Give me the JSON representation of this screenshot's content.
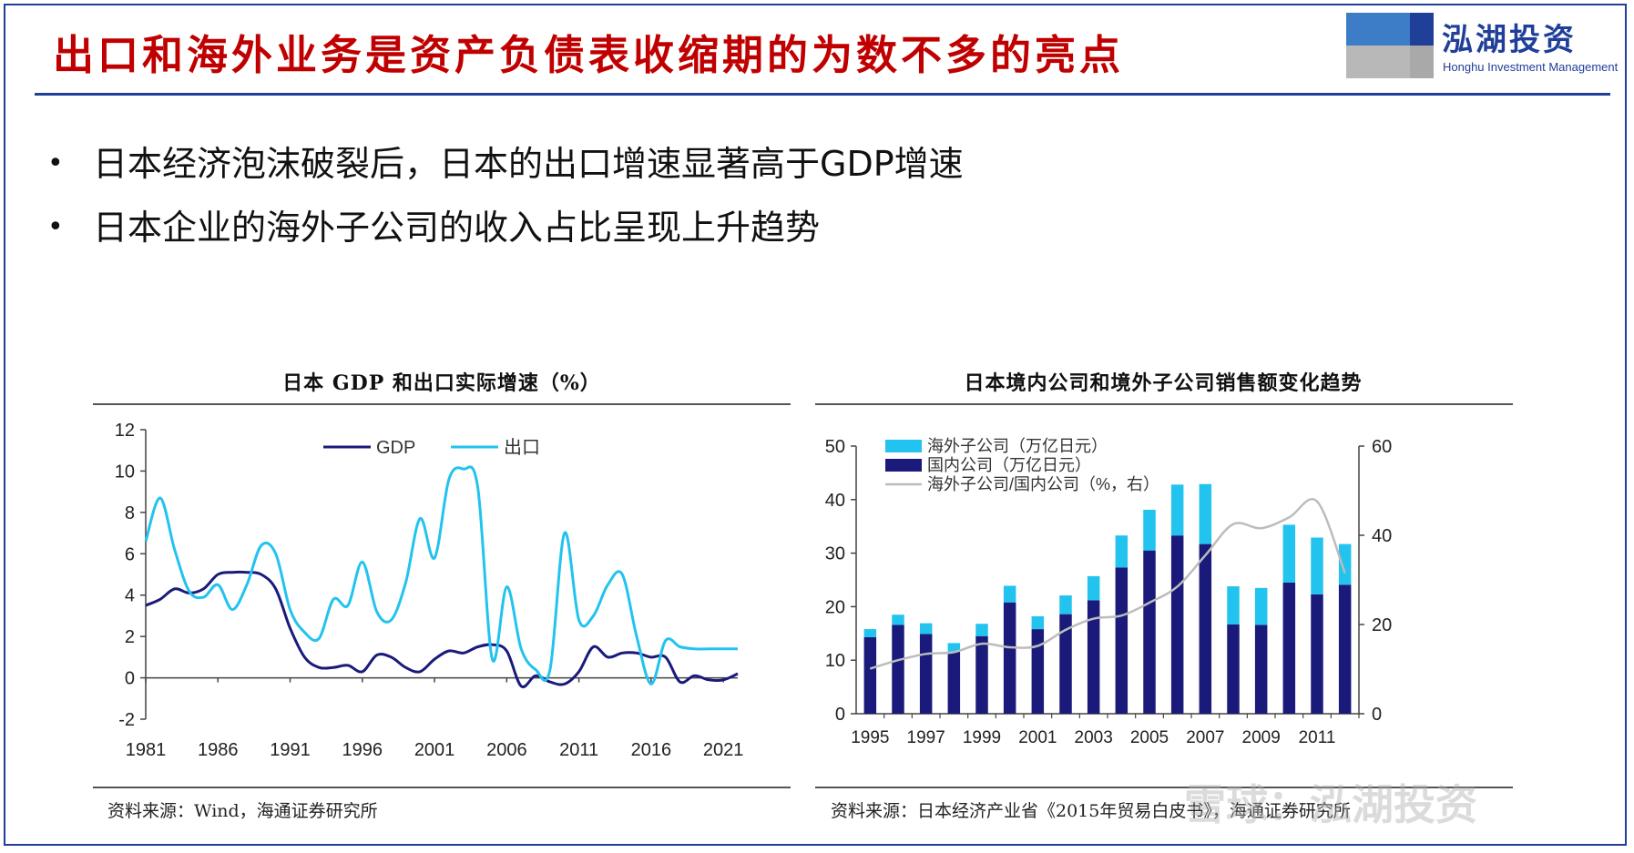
{
  "slide": {
    "title": "出口和海外业务是资产负债表收缩期的为数不多的亮点",
    "logo": {
      "name": "泓湖投资",
      "subtitle": "Honghu Investment Management"
    },
    "bullets": [
      "日本经济泡沫破裂后，日本的出口增速显著高于GDP增速",
      "日本企业的海外子公司的收入占比呈现上升趋势"
    ],
    "bullet_glyph": "•",
    "watermark": "雪球：泓湖投资"
  },
  "colors": {
    "title": "#c00000",
    "frame": "#1f3f99",
    "navy": "#1a1a7a",
    "cyan": "#22c3ee",
    "gray": "#bcbcbc"
  },
  "chart_data": [
    {
      "type": "line",
      "title": "日本 GDP 和出口实际增速（%）",
      "source": "资料来源：Wind，海通证券研究所",
      "ylim": [
        -2,
        12
      ],
      "yticks": [
        12,
        10,
        8,
        6,
        4,
        2,
        0,
        -2
      ],
      "xlim": [
        1981,
        2022
      ],
      "xticks": [
        1981,
        1986,
        1991,
        1996,
        2001,
        2006,
        2011,
        2016,
        2021
      ],
      "legend_position": "top",
      "grid": false,
      "series": [
        {
          "name": "GDP",
          "color": "#1a1a7a",
          "x": [
            1981,
            1982,
            1983,
            1984,
            1985,
            1986,
            1987,
            1988,
            1989,
            1990,
            1991,
            1992,
            1993,
            1994,
            1995,
            1996,
            1997,
            1998,
            1999,
            2000,
            2001,
            2002,
            2003,
            2004,
            2005,
            2006,
            2007,
            2008,
            2009,
            2010,
            2011,
            2012,
            2013,
            2014,
            2015,
            2016,
            2017,
            2018,
            2019,
            2020,
            2021,
            2022
          ],
          "y": [
            3.5,
            3.8,
            4.3,
            4.1,
            4.3,
            5.0,
            5.1,
            5.1,
            5.0,
            4.3,
            2.4,
            1.0,
            0.5,
            0.5,
            0.6,
            0.3,
            1.1,
            1.0,
            0.5,
            0.3,
            0.9,
            1.3,
            1.2,
            1.5,
            1.6,
            1.3,
            -0.4,
            0.1,
            -0.2,
            -0.3,
            0.3,
            1.5,
            1.0,
            1.2,
            1.2,
            1.0,
            1.0,
            -0.2,
            0.1,
            -0.1,
            -0.1,
            0.2
          ]
        },
        {
          "name": "出口",
          "color": "#22c3ee",
          "x": [
            1981,
            1982,
            1983,
            1984,
            1985,
            1986,
            1987,
            1988,
            1989,
            1990,
            1991,
            1992,
            1993,
            1994,
            1995,
            1996,
            1997,
            1998,
            1999,
            2000,
            2001,
            2002,
            2003,
            2004,
            2005,
            2006,
            2007,
            2008,
            2009,
            2010,
            2011,
            2012,
            2013,
            2014,
            2015,
            2016,
            2017,
            2018,
            2019,
            2020,
            2021,
            2022
          ],
          "y": [
            6.6,
            8.7,
            6.2,
            4.2,
            3.9,
            4.5,
            3.3,
            4.5,
            6.4,
            6.0,
            3.3,
            2.2,
            1.9,
            3.8,
            3.5,
            5.6,
            3.2,
            2.8,
            4.6,
            7.7,
            5.8,
            9.6,
            10.1,
            9.2,
            0.9,
            4.4,
            1.4,
            0.4,
            0.4,
            7.0,
            2.8,
            3.0,
            4.5,
            5.0,
            2.0,
            -0.3,
            1.8,
            1.5,
            1.4,
            1.4,
            1.4,
            1.4
          ]
        }
      ]
    },
    {
      "type": "bar",
      "title": "日本境内公司和境外子公司销售额变化趋势",
      "source": "资料来源：日本经济产业省《2015年贸易白皮书》，海通证券研究所",
      "stacked": true,
      "categories": [
        "1995",
        "1996",
        "1997",
        "1998",
        "1999",
        "2000",
        "2001",
        "2002",
        "2003",
        "2004",
        "2005",
        "2006",
        "2007",
        "2008",
        "2009",
        "2010",
        "2011",
        "2012"
      ],
      "xtick_labels": [
        "1995",
        "1997",
        "1999",
        "2001",
        "2003",
        "2005",
        "2007",
        "2009",
        "2011"
      ],
      "ylim": [
        0,
        50
      ],
      "yticks": [
        50,
        40,
        30,
        20,
        10,
        0
      ],
      "y2lim": [
        0,
        60
      ],
      "y2ticks": [
        60,
        40,
        20,
        0
      ],
      "legend_position": "top-left",
      "grid": false,
      "series": [
        {
          "name": "国内公司（万亿日元）",
          "color": "#1a1a7a",
          "axis": "left",
          "values": [
            14.3,
            16.6,
            14.9,
            11.6,
            14.5,
            20.8,
            15.8,
            18.6,
            21.2,
            27.3,
            30.5,
            33.3,
            31.7,
            16.7,
            16.6,
            24.5,
            22.3,
            24.1
          ]
        },
        {
          "name": "海外子公司（万亿日元）",
          "color": "#22c3ee",
          "axis": "left",
          "values": [
            1.5,
            1.9,
            2.0,
            1.6,
            2.3,
            3.1,
            2.4,
            3.5,
            4.5,
            6.0,
            7.6,
            9.5,
            11.2,
            7.1,
            6.9,
            10.8,
            10.6,
            7.6
          ]
        },
        {
          "name": "海外子公司/国内公司（%，右）",
          "color": "#bcbcbc",
          "axis": "right",
          "type": "line",
          "values": [
            10.1,
            12.0,
            13.4,
            13.8,
            15.7,
            14.9,
            15.2,
            18.8,
            21.3,
            22.0,
            24.9,
            28.5,
            35.5,
            42.5,
            41.6,
            44.0,
            47.6,
            31.5
          ]
        }
      ]
    }
  ]
}
